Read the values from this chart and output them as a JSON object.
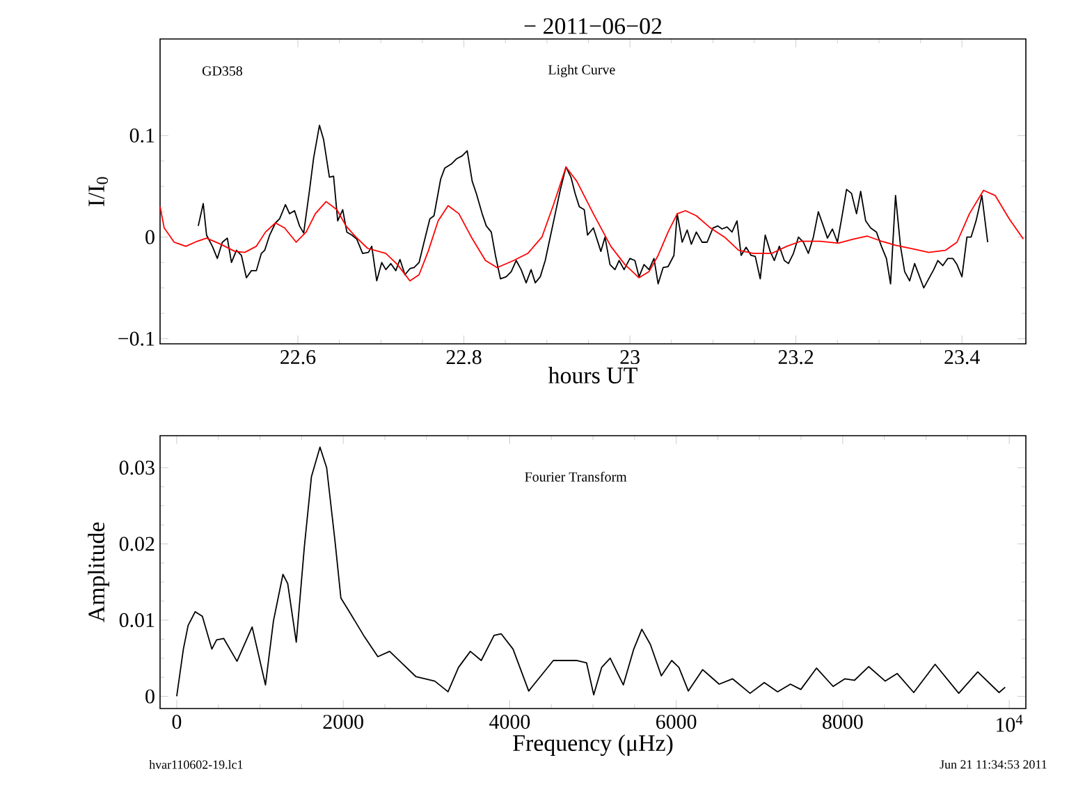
{
  "chart_data": [
    {
      "type": "line",
      "title": "− 2011−06−02",
      "xlabel": "hours UT",
      "ylabel": "I/I$_{0}$",
      "annotations": [
        "GD358",
        "Light Curve"
      ],
      "xlim": [
        22.434,
        23.477
      ],
      "ylim": [
        -0.105,
        0.195
      ],
      "xticks": [
        22.6,
        22.8,
        23,
        23.2,
        23.4
      ],
      "yticks": [
        {
          "value": -0.1,
          "label": "−0.1"
        },
        0,
        0.1
      ],
      "series": [
        {
          "color": "#000000",
          "x": [
            22.48,
            22.486,
            22.49,
            22.497,
            22.503,
            22.509,
            22.515,
            22.52,
            22.526,
            22.532,
            22.538,
            22.544,
            22.55,
            22.556,
            22.56,
            22.566,
            22.573,
            22.578,
            22.585,
            22.59,
            22.596,
            22.602,
            22.607,
            22.614,
            22.619,
            22.626,
            22.631,
            22.638,
            22.643,
            22.648,
            22.654,
            22.659,
            22.665,
            22.671,
            22.678,
            22.685,
            22.689,
            22.695,
            22.701,
            22.706,
            22.712,
            22.718,
            22.723,
            22.729,
            22.735,
            22.74,
            22.746,
            22.752,
            22.759,
            22.764,
            22.772,
            22.777,
            22.785,
            22.791,
            22.798,
            22.804,
            22.81,
            22.815,
            22.822,
            22.827,
            22.833,
            22.838,
            22.844,
            22.851,
            22.857,
            22.863,
            22.869,
            22.875,
            22.881,
            22.886,
            22.892,
            22.898,
            22.904,
            22.91,
            22.916,
            22.923,
            22.929,
            22.934,
            22.939,
            22.945,
            22.949,
            22.956,
            22.965,
            22.97,
            22.976,
            22.982,
            22.987,
            22.993,
            23.0,
            23.006,
            23.011,
            23.017,
            23.023,
            23.029,
            23.034,
            23.04,
            23.046,
            23.053,
            23.057,
            23.063,
            23.069,
            23.074,
            23.08,
            23.087,
            23.093,
            23.1,
            23.106,
            23.111,
            23.117,
            23.123,
            23.129,
            23.134,
            23.14,
            23.146,
            23.151,
            23.157,
            23.163,
            23.169,
            23.174,
            23.18,
            23.186,
            23.191,
            23.197,
            23.203,
            23.209,
            23.215,
            23.221,
            23.227,
            23.233,
            23.238,
            23.244,
            23.25,
            23.255,
            23.261,
            23.267,
            23.273,
            23.278,
            23.284,
            23.29,
            23.297,
            23.303,
            23.309,
            23.314,
            23.32,
            23.326,
            23.331,
            23.337,
            23.343,
            23.349,
            23.354,
            23.36,
            23.366,
            23.371,
            23.377,
            23.383,
            23.389,
            23.394,
            23.4,
            23.406,
            23.411,
            23.417,
            23.424,
            23.431
          ],
          "values": [
            0.011,
            0.033,
            0.002,
            -0.009,
            -0.021,
            -0.005,
            -0.001,
            -0.025,
            -0.013,
            -0.018,
            -0.04,
            -0.033,
            -0.033,
            -0.016,
            -0.013,
            0.002,
            0.014,
            0.018,
            0.032,
            0.023,
            0.026,
            0.011,
            0.004,
            0.046,
            0.078,
            0.11,
            0.096,
            0.059,
            0.06,
            0.016,
            0.027,
            0.005,
            0.002,
            -0.002,
            -0.016,
            -0.015,
            -0.009,
            -0.043,
            -0.025,
            -0.032,
            -0.026,
            -0.033,
            -0.022,
            -0.037,
            -0.031,
            -0.03,
            -0.025,
            -0.005,
            0.018,
            0.021,
            0.057,
            0.068,
            0.072,
            0.077,
            0.08,
            0.085,
            0.055,
            0.043,
            0.023,
            0.011,
            0.005,
            -0.018,
            -0.041,
            -0.039,
            -0.034,
            -0.023,
            -0.032,
            -0.045,
            -0.032,
            -0.045,
            -0.039,
            -0.023,
            0.0,
            0.023,
            0.046,
            0.069,
            0.059,
            0.043,
            0.03,
            0.027,
            0.002,
            0.009,
            -0.014,
            0.0,
            -0.027,
            -0.032,
            -0.023,
            -0.032,
            -0.021,
            -0.023,
            -0.039,
            -0.027,
            -0.032,
            -0.021,
            -0.046,
            -0.03,
            -0.029,
            -0.018,
            0.023,
            -0.005,
            0.007,
            -0.007,
            0.005,
            -0.005,
            -0.005,
            0.009,
            0.011,
            0.008,
            0.01,
            0.005,
            0.016,
            -0.018,
            -0.01,
            -0.018,
            -0.019,
            -0.041,
            0.002,
            -0.014,
            -0.023,
            -0.009,
            -0.023,
            -0.026,
            -0.016,
            0.0,
            -0.005,
            -0.016,
            0.0,
            0.025,
            0.011,
            -0.001,
            0.008,
            -0.005,
            0.018,
            0.047,
            0.043,
            0.023,
            0.045,
            0.016,
            0.009,
            0.005,
            -0.009,
            -0.021,
            -0.046,
            0.041,
            -0.009,
            -0.034,
            -0.043,
            -0.026,
            -0.039,
            -0.05,
            -0.041,
            -0.032,
            -0.023,
            -0.028,
            -0.021,
            -0.021,
            -0.027,
            -0.039,
            0.0,
            0.0,
            0.016,
            0.041,
            -0.005
          ]
        },
        {
          "color": "#ff0000",
          "x": [
            22.434,
            22.439,
            22.451,
            22.465,
            22.479,
            22.49,
            22.507,
            22.524,
            22.536,
            22.55,
            22.561,
            22.573,
            22.584,
            22.598,
            22.61,
            22.621,
            22.634,
            22.647,
            22.658,
            22.67,
            22.684,
            22.706,
            22.72,
            22.735,
            22.746,
            22.757,
            22.769,
            22.781,
            22.794,
            22.809,
            22.826,
            22.84,
            22.86,
            22.877,
            22.894,
            22.908,
            22.923,
            22.936,
            22.956,
            22.977,
            22.994,
            23.011,
            23.023,
            23.034,
            23.046,
            23.057,
            23.067,
            23.08,
            23.097,
            23.114,
            23.131,
            23.149,
            23.171,
            23.189,
            23.206,
            23.229,
            23.251,
            23.269,
            23.286,
            23.303,
            23.32,
            23.343,
            23.36,
            23.38,
            23.394,
            23.409,
            23.426,
            23.44,
            23.457,
            23.474
          ],
          "values": [
            0.03,
            0.009,
            -0.005,
            -0.009,
            -0.004,
            -0.001,
            -0.007,
            -0.014,
            -0.015,
            -0.009,
            0.005,
            0.014,
            0.009,
            -0.005,
            0.005,
            0.023,
            0.035,
            0.027,
            0.011,
            0.0,
            -0.011,
            -0.016,
            -0.027,
            -0.043,
            -0.037,
            -0.014,
            0.016,
            0.031,
            0.023,
            0.0,
            -0.023,
            -0.03,
            -0.023,
            -0.016,
            0.0,
            0.032,
            0.069,
            0.055,
            0.023,
            -0.009,
            -0.027,
            -0.04,
            -0.034,
            -0.018,
            0.005,
            0.023,
            0.026,
            0.021,
            0.009,
            0.0,
            -0.013,
            -0.016,
            -0.016,
            -0.009,
            -0.004,
            -0.004,
            -0.006,
            -0.002,
            0.001,
            -0.004,
            -0.008,
            -0.012,
            -0.015,
            -0.013,
            -0.005,
            0.023,
            0.046,
            0.041,
            0.018,
            -0.002
          ]
        }
      ]
    },
    {
      "type": "line",
      "xlabel": "Frequency (μHz)",
      "ylabel": "Amplitude",
      "annotations": [
        "Fourier Transform",
        "hvar110602-19.lc1",
        "Jun 21 11:34:53 2011"
      ],
      "xlim": [
        -200,
        10200
      ],
      "ylim": [
        -0.0016,
        0.0342
      ],
      "xticks": [
        0,
        2000,
        4000,
        6000,
        8000,
        {
          "value": 10000,
          "label": "10$^{4}$"
        }
      ],
      "yticks": [
        0,
        0.01,
        0.02,
        0.03
      ],
      "series": [
        {
          "color": "#000000",
          "x": [
            0,
            80,
            137,
            222,
            308,
            422,
            479,
            564,
            724,
            906,
            1066,
            1162,
            1276,
            1333,
            1436,
            1533,
            1618,
            1721,
            1801,
            1903,
            1972,
            2074,
            2245,
            2416,
            2558,
            2701,
            2872,
            3100,
            3259,
            3385,
            3527,
            3658,
            3812,
            3898,
            4040,
            4228,
            4524,
            4809,
            4923,
            5009,
            5105,
            5207,
            5365,
            5490,
            5587,
            5690,
            5821,
            5946,
            6032,
            6146,
            6317,
            6516,
            6676,
            6887,
            7058,
            7218,
            7372,
            7497,
            7685,
            7885,
            8027,
            8141,
            8312,
            8511,
            8654,
            8853,
            9110,
            9394,
            9622,
            9878,
            9952
          ],
          "values": [
            0,
            0.0062,
            0.0093,
            0.0111,
            0.0105,
            0.0062,
            0.0074,
            0.0076,
            0.0046,
            0.0091,
            0.0015,
            0.0099,
            0.016,
            0.0148,
            0.0071,
            0.0196,
            0.0288,
            0.0327,
            0.03,
            0.0202,
            0.0129,
            0.0111,
            0.008,
            0.0052,
            0.0059,
            0.0044,
            0.0026,
            0.002,
            0.0006,
            0.0038,
            0.0059,
            0.0047,
            0.008,
            0.0082,
            0.0062,
            0.0007,
            0.0047,
            0.0047,
            0.0044,
            0.0002,
            0.0038,
            0.005,
            0.0015,
            0.0062,
            0.0088,
            0.0068,
            0.0027,
            0.0047,
            0.0038,
            0.0007,
            0.0035,
            0.0016,
            0.0023,
            0.0004,
            0.0018,
            0.0006,
            0.0016,
            0.0009,
            0.0037,
            0.0013,
            0.0023,
            0.0021,
            0.0039,
            0.002,
            0.003,
            0.0005,
            0.0042,
            0.0004,
            0.0032,
            0.0005,
            0.0012
          ]
        }
      ]
    }
  ]
}
